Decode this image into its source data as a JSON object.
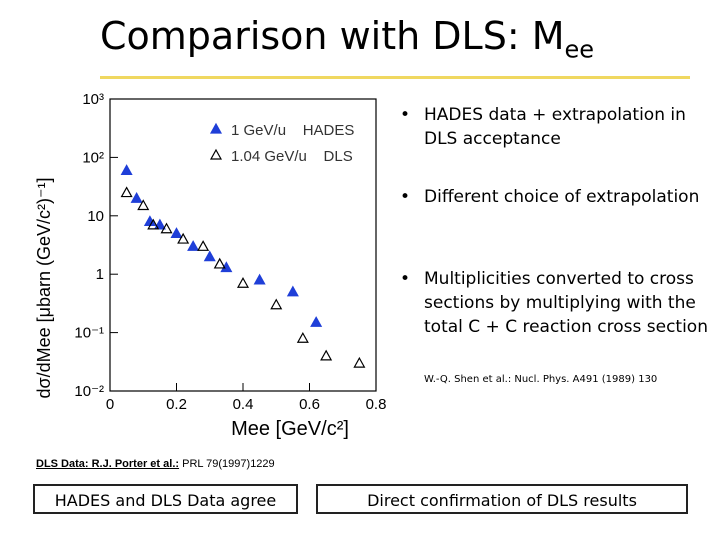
{
  "title": "Comparison with DLS: M",
  "title_subscript": "ee",
  "bullets": [
    "HADES data + extrapolation in DLS acceptance",
    "Different choice of extrapolation",
    "Multiplicities converted to cross sections by multiplying with the total C + C reaction cross section"
  ],
  "reference": "W.-Q. Shen et al.: Nucl. Phys. A491 (1989) 130",
  "footnote": {
    "source": "DLS Data: R.J. Porter et al.:",
    "citation": "PRL 79(1997)1229"
  },
  "boxes": [
    "HADES and DLS Data agree",
    "Direct confirmation of DLS results"
  ],
  "chart_data": {
    "type": "scatter",
    "xlabel": "Mee [GeV/c²]",
    "ylabel": "dσ/dMee [μbarn (GeV/c²)⁻¹]",
    "xlim": [
      0,
      0.8
    ],
    "xticks": [
      0,
      0.2,
      0.4,
      0.6,
      0.8
    ],
    "ylim": [
      0.01,
      1000
    ],
    "log_y": true,
    "yticks": [
      {
        "value": 0.01,
        "label": "10⁻²"
      },
      {
        "value": 0.1,
        "label": "10⁻¹"
      },
      1,
      10,
      {
        "value": 100,
        "label": "10²"
      },
      {
        "value": 1000,
        "label": "10³"
      }
    ],
    "legend": "upper right",
    "series": [
      {
        "name": "1 GeV/u    HADES",
        "color": "#1f3fd8",
        "marker": "filled",
        "x": [
          0.05,
          0.08,
          0.12,
          0.15,
          0.2,
          0.25,
          0.3,
          0.35,
          0.45,
          0.55,
          0.62
        ],
        "values": [
          60,
          20,
          8,
          7,
          5,
          3,
          2,
          1.3,
          0.8,
          0.5,
          0.15
        ]
      },
      {
        "name": "1.04 GeV/u    DLS",
        "color": "#000000",
        "marker": "open",
        "x": [
          0.05,
          0.1,
          0.13,
          0.17,
          0.22,
          0.28,
          0.33,
          0.4,
          0.5,
          0.58,
          0.65,
          0.75
        ],
        "values": [
          25,
          15,
          7,
          6,
          4,
          3,
          1.5,
          0.7,
          0.3,
          0.08,
          0.04,
          0.03
        ]
      }
    ]
  }
}
